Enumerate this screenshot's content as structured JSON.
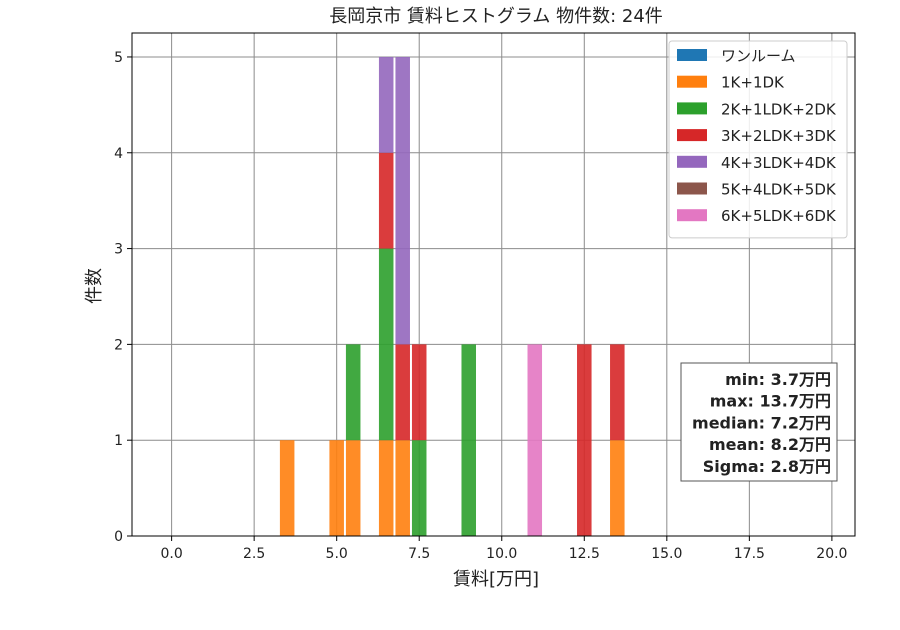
{
  "chart_data": {
    "type": "bar",
    "stacked": true,
    "title": "長岡京市 賃料ヒストグラム  物件数: 24件",
    "xlabel": "賃料[万円]",
    "ylabel": "件数",
    "xlim": [
      -1.2,
      20.7
    ],
    "ylim": [
      0,
      5.25
    ],
    "xticks": [
      "0.0",
      "2.5",
      "5.0",
      "7.5",
      "10.0",
      "12.5",
      "15.0",
      "17.5",
      "20.0"
    ],
    "yticks": [
      "0",
      "1",
      "2",
      "3",
      "4",
      "5"
    ],
    "grid": true,
    "legend_position": "top-right",
    "bin_width": 0.5,
    "series": [
      {
        "name": "ワンルーム",
        "color": "#1f77b4",
        "bars": []
      },
      {
        "name": "1K+1DK",
        "color": "#ff7f0e",
        "bars": [
          {
            "x": 3.5,
            "count": 1
          },
          {
            "x": 5.0,
            "count": 1
          },
          {
            "x": 5.5,
            "count": 1
          },
          {
            "x": 6.5,
            "count": 1
          },
          {
            "x": 7.0,
            "count": 1
          },
          {
            "x": 13.5,
            "count": 1
          }
        ]
      },
      {
        "name": "2K+1LDK+2DK",
        "color": "#2ca02c",
        "bars": [
          {
            "x": 5.5,
            "count": 1
          },
          {
            "x": 6.5,
            "count": 2
          },
          {
            "x": 7.5,
            "count": 1
          },
          {
            "x": 9.0,
            "count": 2
          }
        ]
      },
      {
        "name": "3K+2LDK+3DK",
        "color": "#d62728",
        "bars": [
          {
            "x": 6.5,
            "count": 1
          },
          {
            "x": 7.0,
            "count": 1
          },
          {
            "x": 7.5,
            "count": 1
          },
          {
            "x": 12.5,
            "count": 2
          },
          {
            "x": 13.5,
            "count": 1
          }
        ]
      },
      {
        "name": "4K+3LDK+4DK",
        "color": "#9467bd",
        "bars": [
          {
            "x": 6.5,
            "count": 1
          },
          {
            "x": 7.0,
            "count": 3
          }
        ]
      },
      {
        "name": "5K+4LDK+5DK",
        "color": "#8c564b",
        "bars": []
      },
      {
        "name": "6K+5LDK+6DK",
        "color": "#e377c2",
        "bars": [
          {
            "x": 11.0,
            "count": 2
          }
        ]
      }
    ],
    "stats": [
      "min: 3.7万円",
      "max: 13.7万円",
      "median: 7.2万円",
      "mean: 8.2万円",
      "Sigma: 2.8万円"
    ]
  }
}
